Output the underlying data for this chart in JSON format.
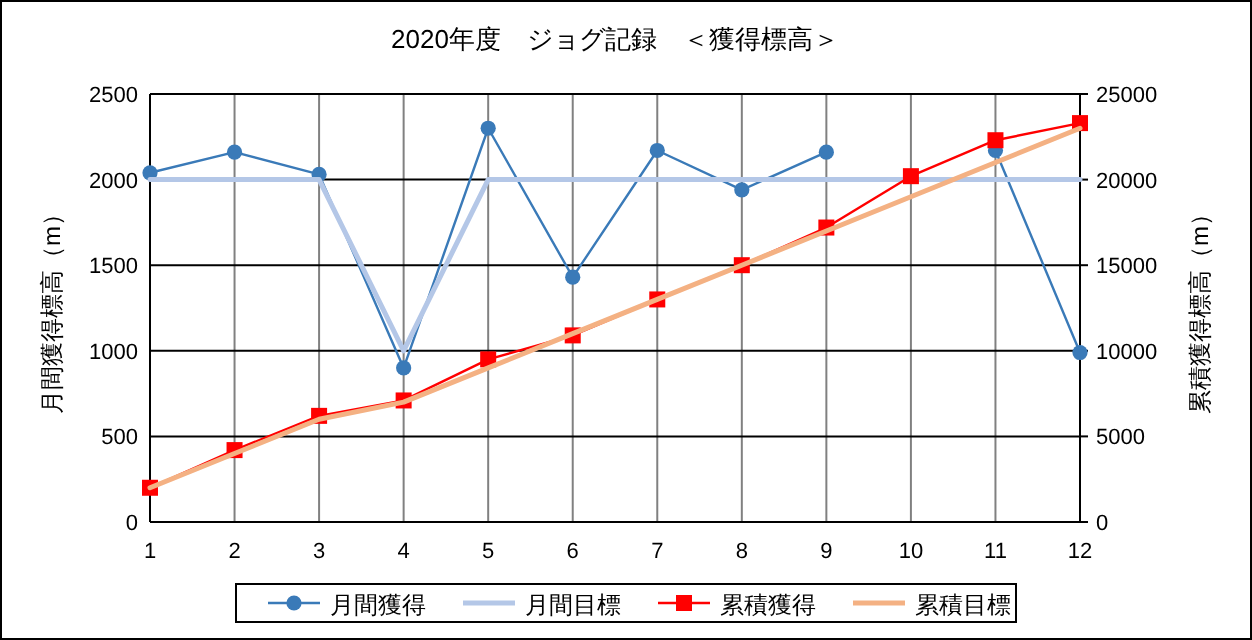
{
  "chart_data": {
    "type": "line",
    "title": "2020年度　ジョグ記録　＜獲得標高＞",
    "ylabel": "月間獲得標高（m）",
    "y2label": "累積獲得標高（m）",
    "x": [
      1,
      2,
      3,
      4,
      5,
      6,
      7,
      8,
      9,
      10,
      11,
      12
    ],
    "xlim": [
      1,
      12
    ],
    "xticks": [
      1,
      2,
      3,
      4,
      5,
      6,
      7,
      8,
      9,
      10,
      11,
      12
    ],
    "ylim": [
      0,
      2500
    ],
    "yticks": [
      0,
      500,
      1000,
      1500,
      2000,
      2500
    ],
    "y2lim": [
      0,
      25000
    ],
    "y2ticks": [
      0,
      5000,
      10000,
      15000,
      20000,
      25000
    ],
    "grid": true,
    "legend": "bottom",
    "series": [
      {
        "name": "月間獲得",
        "color": "#3a7ab8",
        "marker": "circle",
        "values": [
          2040,
          2160,
          2030,
          900,
          2300,
          1430,
          2170,
          1940,
          2160,
          null,
          2170,
          990
        ]
      },
      {
        "name": "月間目標",
        "color": "#b4c7e7",
        "marker": "none",
        "values": [
          2000,
          2000,
          2000,
          1000,
          2000,
          2000,
          2000,
          2000,
          2000,
          2000,
          2000,
          2000
        ]
      },
      {
        "name": "累積獲得",
        "color": "#ff0000",
        "marker": "square",
        "axis": "y2",
        "values": [
          2000,
          4200,
          6200,
          7100,
          9500,
          10900,
          13000,
          15000,
          17200,
          20200,
          22300,
          23300
        ]
      },
      {
        "name": "累積目標",
        "color": "#f4b183",
        "marker": "none",
        "axis": "y2",
        "values": [
          2000,
          4000,
          6000,
          7000,
          9000,
          11000,
          13000,
          15000,
          17000,
          19000,
          21000,
          23000
        ]
      }
    ]
  }
}
